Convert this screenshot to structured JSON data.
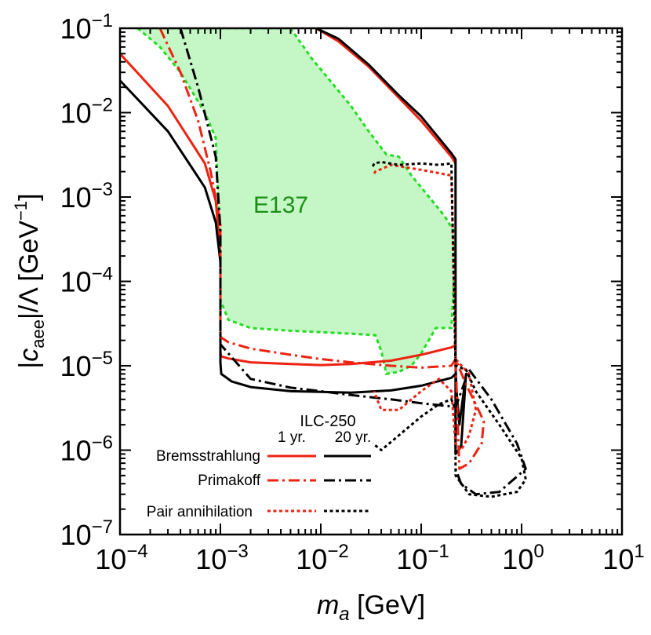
{
  "chart_data": {
    "type": "line",
    "title": "",
    "xlabel": {
      "var": "m",
      "sub": "a",
      "unit": " [GeV]"
    },
    "ylabel": {
      "pre": "|",
      "var": "c",
      "sub": "aee",
      "post": "|/Λ [GeV",
      "sup": "−1",
      "end": "]"
    },
    "xscale": "log",
    "yscale": "log",
    "xlim": [
      0.0001,
      10
    ],
    "ylim": [
      1e-07,
      0.1
    ],
    "x_ticks": [
      {
        "v": 0.0001,
        "base": "10",
        "exp": "−4"
      },
      {
        "v": 0.001,
        "base": "10",
        "exp": "−3"
      },
      {
        "v": 0.01,
        "base": "10",
        "exp": "−2"
      },
      {
        "v": 0.1,
        "base": "10",
        "exp": "−1"
      },
      {
        "v": 1,
        "base": "10",
        "exp": "0"
      },
      {
        "v": 10,
        "base": "10",
        "exp": "1"
      }
    ],
    "y_ticks": [
      {
        "v": 1e-07,
        "base": "10",
        "exp": "−7"
      },
      {
        "v": 1e-06,
        "base": "10",
        "exp": "−6"
      },
      {
        "v": 1e-05,
        "base": "10",
        "exp": "−5"
      },
      {
        "v": 0.0001,
        "base": "10",
        "exp": "−4"
      },
      {
        "v": 0.001,
        "base": "10",
        "exp": "−3"
      },
      {
        "v": 0.01,
        "base": "10",
        "exp": "−2"
      },
      {
        "v": 0.1,
        "base": "10",
        "exp": "−1"
      }
    ],
    "regions": [
      {
        "name": "E137",
        "label": "E137",
        "label_at": [
          0.004,
          0.00065
        ],
        "fill": "#c5f6c5",
        "edge": "#22dd22",
        "points": [
          [
            0.00015,
            0.1
          ],
          [
            0.00025,
            0.06
          ],
          [
            0.0004,
            0.03
          ],
          [
            0.0007,
            0.01
          ],
          [
            0.0009,
            0.005
          ],
          [
            0.001,
            0.00015
          ],
          [
            0.001,
            6e-05
          ],
          [
            0.0012,
            3.5e-05
          ],
          [
            0.002,
            2.8e-05
          ],
          [
            0.005,
            2.6e-05
          ],
          [
            0.01,
            2.5e-05
          ],
          [
            0.02,
            2.4e-05
          ],
          [
            0.035,
            2.3e-05
          ],
          [
            0.04,
            1.5e-05
          ],
          [
            0.045,
            8e-06
          ],
          [
            0.06,
            8.5e-06
          ],
          [
            0.08,
            1e-05
          ],
          [
            0.1,
            1.4e-05
          ],
          [
            0.14,
            2.8e-05
          ],
          [
            0.2,
            2.8e-05
          ],
          [
            0.22,
            0.0002
          ],
          [
            0.21,
            0.0004
          ],
          [
            0.17,
            0.0006
          ],
          [
            0.12,
            0.001
          ],
          [
            0.08,
            0.0018
          ],
          [
            0.06,
            0.003
          ],
          [
            0.045,
            0.0032
          ],
          [
            0.03,
            0.006
          ],
          [
            0.02,
            0.012
          ],
          [
            0.012,
            0.025
          ],
          [
            0.008,
            0.045
          ],
          [
            0.005,
            0.1
          ]
        ]
      }
    ],
    "series": [
      {
        "name": "Bremsstrahlung 1 yr.",
        "color": "#ee2211",
        "dash": "solid",
        "x": [
          0.0001,
          0.0003,
          0.0007,
          0.0009,
          0.001,
          0.001,
          0.00101,
          0.0012,
          0.002,
          0.005,
          0.01,
          0.02,
          0.05,
          0.1,
          0.2,
          0.22
        ],
        "y": [
          0.05,
          0.012,
          0.0025,
          0.0009,
          0.0002,
          1.5e-05,
          1.3e-05,
          1.22e-05,
          1.1e-05,
          1.05e-05,
          1.02e-05,
          1.05e-05,
          1.15e-05,
          1.35e-05,
          1.65e-05,
          1.75e-05
        ]
      },
      {
        "name": "Bremsstrahlung 20 yr.",
        "color": "#000000",
        "dash": "solid",
        "x": [
          0.0001,
          0.0003,
          0.0007,
          0.0009,
          0.001,
          0.001,
          0.00102,
          0.0013,
          0.002,
          0.005,
          0.01,
          0.02,
          0.05,
          0.1,
          0.2,
          0.22
        ],
        "y": [
          0.024,
          0.006,
          0.0013,
          0.0005,
          0.00017,
          1.1e-05,
          8e-06,
          6.5e-06,
          5.6e-06,
          5e-06,
          4.9e-06,
          4.8e-06,
          5.1e-06,
          5.8e-06,
          7.2e-06,
          8e-06
        ]
      },
      {
        "name": "Bremsstrahlung high edge 1 yr.",
        "color": "#ee2211",
        "dash": "solid",
        "x": [
          0.009,
          0.015,
          0.03,
          0.06,
          0.1,
          0.2,
          0.22
        ],
        "y": [
          0.1,
          0.07,
          0.035,
          0.015,
          0.008,
          0.003,
          0.0025
        ]
      },
      {
        "name": "Bremsstrahlung high edge 20 yr.",
        "color": "#000000",
        "dash": "solid",
        "x": [
          0.009,
          0.015,
          0.03,
          0.06,
          0.1,
          0.2,
          0.22,
          0.22,
          0.225,
          0.24,
          0.28,
          0.25,
          0.22,
          0.22
        ],
        "y": [
          0.1,
          0.075,
          0.037,
          0.016,
          0.009,
          0.0033,
          0.0028,
          1e-05,
          5e-06,
          2e-06,
          8e-06,
          1.1e-06,
          9e-07,
          8e-06
        ]
      },
      {
        "name": "Primakoff 1 yr.",
        "color": "#ee2211",
        "dash": "dashdot",
        "x": [
          0.00025,
          0.0004,
          0.0006,
          0.0008,
          0.001,
          0.001,
          0.0012,
          0.002,
          0.005,
          0.01,
          0.02,
          0.05,
          0.1,
          0.2,
          0.22,
          0.28,
          0.35,
          0.42,
          0.4,
          0.3,
          0.24,
          0.22
        ],
        "y": [
          0.1,
          0.03,
          0.008,
          0.002,
          0.0005,
          2.2e-05,
          1.9e-05,
          1.6e-05,
          1.35e-05,
          1.2e-05,
          1.1e-05,
          1e-05,
          9.5e-06,
          1e-05,
          1.2e-05,
          6e-06,
          3.5e-06,
          2.2e-06,
          1.2e-06,
          7e-07,
          6e-07,
          1.2e-05
        ]
      },
      {
        "name": "Primakoff 20 yr.",
        "color": "#000000",
        "dash": "dashdot",
        "x": [
          0.0004,
          0.0006,
          0.0009,
          0.001,
          0.001,
          0.002,
          0.005,
          0.01,
          0.02,
          0.05,
          0.1,
          0.2,
          0.22,
          0.3,
          0.5,
          0.9,
          1.1,
          0.6,
          0.35,
          0.25,
          0.22
        ],
        "y": [
          0.1,
          0.02,
          0.003,
          0.0004,
          1.8e-05,
          7e-06,
          5.5e-06,
          5e-06,
          4.5e-06,
          4e-06,
          3.6e-06,
          3.3e-06,
          3.2e-06,
          9e-06,
          4e-06,
          1.2e-06,
          6e-07,
          3.2e-07,
          3e-07,
          4e-07,
          6e-07
        ]
      },
      {
        "name": "Pair annihilation 1 yr.",
        "color": "#ee2211",
        "dash": "dotted",
        "x": [
          0.034,
          0.035,
          0.05,
          0.1,
          0.2,
          0.22,
          0.3,
          0.35,
          0.3,
          0.25,
          0.22,
          0.2,
          0.15,
          0.1,
          0.06,
          0.04,
          0.034
        ],
        "y": [
          0.0019,
          0.002,
          0.0024,
          0.0021,
          0.0018,
          1.2e-05,
          8e-06,
          3e-06,
          1.5e-06,
          1e-06,
          1.2e-06,
          5e-06,
          7e-06,
          5e-06,
          3e-06,
          3e-06,
          5e-06
        ]
      },
      {
        "name": "Pair annihilation 20 yr.",
        "color": "#000000",
        "dash": "dotted",
        "x": [
          0.033,
          0.034,
          0.04,
          0.06,
          0.1,
          0.15,
          0.2,
          0.22,
          0.28,
          0.35,
          0.6,
          1.0,
          1.1,
          0.9,
          0.5,
          0.3,
          0.22,
          0.22,
          0.2,
          0.15,
          0.1,
          0.06,
          0.04,
          0.033
        ],
        "y": [
          0.0023,
          0.0025,
          0.0026,
          0.0024,
          0.0025,
          0.0024,
          0.0025,
          1e-05,
          9e-06,
          5e-06,
          2e-06,
          8e-07,
          4.5e-07,
          3.2e-07,
          2.8e-07,
          3e-07,
          5e-07,
          3e-06,
          4e-06,
          3.5e-06,
          2.5e-06,
          1.5e-06,
          1e-06,
          1.2e-06
        ]
      }
    ],
    "legend": {
      "placement": "bottom-left",
      "header": "ILC-250",
      "columns": [
        "1 yr.",
        "20 yr."
      ],
      "rows": [
        {
          "label": "Bremsstrahlung",
          "dash": "solid"
        },
        {
          "label": "Primakoff",
          "dash": "dashdot"
        },
        {
          "label": "Pair annihilation",
          "dash": "dotted"
        }
      ],
      "colors": {
        "1 yr.": "#ee2211",
        "20 yr.": "#000000"
      }
    }
  }
}
